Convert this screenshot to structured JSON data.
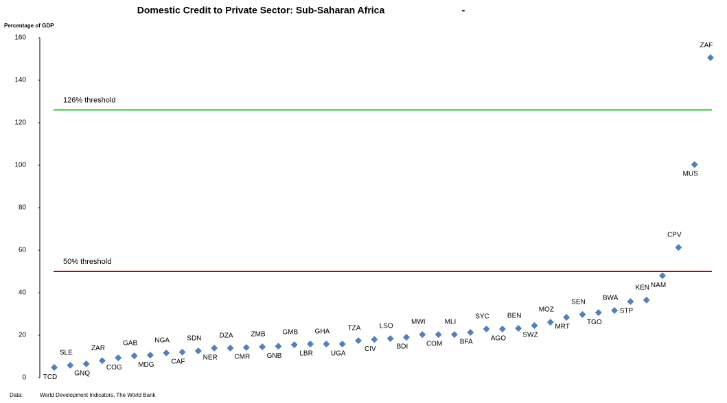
{
  "chart_data": {
    "type": "scatter",
    "title": "Domestic Credit to Private Sector: Sub-Saharan Africa",
    "title_suffix": "-",
    "y_axis_label": "Percentage of GDP",
    "source_label": "Data:",
    "source": "World Development Indicators, The World Bank",
    "categories": [
      "TCD",
      "SLE",
      "GNQ",
      "ZAR",
      "COG",
      "GAB",
      "MDG",
      "NGA",
      "CAF",
      "SDN",
      "NER",
      "DZA",
      "CMR",
      "ZMB",
      "GNB",
      "GMB",
      "LBR",
      "GHA",
      "UGA",
      "TZA",
      "CIV",
      "LSO",
      "BDI",
      "MWI",
      "COM",
      "MLI",
      "BFA",
      "SYC",
      "AGO",
      "BEN",
      "SWZ",
      "MOZ",
      "MRT",
      "SEN",
      "TGO",
      "BWA",
      "STP",
      "KEN",
      "NAM",
      "CPV",
      "MUS",
      "ZAF"
    ],
    "values": [
      4.8,
      5.8,
      6.5,
      8,
      9.3,
      10.3,
      10.6,
      11.6,
      12,
      12.6,
      13.9,
      13.9,
      14.2,
      14.5,
      14.8,
      15.5,
      15.8,
      15.8,
      15.8,
      17.4,
      18,
      18.4,
      19,
      20.3,
      20.3,
      20.3,
      21.3,
      22.9,
      22.9,
      23.2,
      24.5,
      26.1,
      28.4,
      29.7,
      30.6,
      31.6,
      35.8,
      36.5,
      48,
      61.3,
      100.3,
      150.6
    ],
    "color": "#4f81bd",
    "ylim": [
      0,
      160
    ],
    "yticks": [
      0,
      20,
      40,
      60,
      80,
      100,
      120,
      140,
      160
    ],
    "thresholds": [
      {
        "value": 126,
        "label": "126% threshold",
        "color": "#22cc22"
      },
      {
        "value": 50,
        "label": "50% threshold",
        "color": "#c00000"
      }
    ]
  }
}
